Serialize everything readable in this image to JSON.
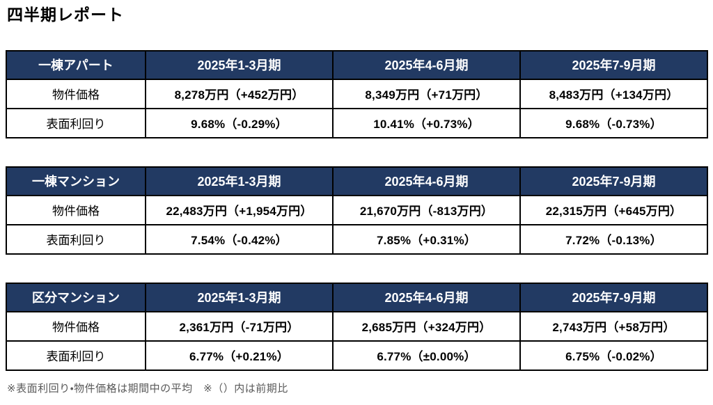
{
  "page_title": "四半期レポート",
  "footnote": "※表面利回り・物件価格は期間中の平均　※（）内は前期比",
  "colors": {
    "header_bg": "#223A63",
    "header_text": "#FFFFFF",
    "table_border": "#000000",
    "footnote_text": "#595959"
  },
  "columns": [
    "2025年1-3月期",
    "2025年4-6月期",
    "2025年7-9月期"
  ],
  "row_labels": {
    "price": "物件価格",
    "yield": "表面利回り"
  },
  "tables": [
    {
      "category": "一棟アパート",
      "price": [
        "8,278万円（+452万円）",
        "8,349万円（+71万円）",
        "8,483万円（+134万円）"
      ],
      "yield": [
        "9.68%（-0.29%）",
        "10.41%（+0.73%）",
        "9.68%（-0.73%）"
      ]
    },
    {
      "category": "一棟マンション",
      "price": [
        "22,483万円（+1,954万円）",
        "21,670万円（-813万円）",
        "22,315万円（+645万円）"
      ],
      "yield": [
        "7.54%（-0.42%）",
        "7.85%（+0.31%）",
        "7.72%（-0.13%）"
      ]
    },
    {
      "category": "区分マンション",
      "price": [
        "2,361万円（-71万円）",
        "2,685万円（+324万円）",
        "2,743万円（+58万円）"
      ],
      "yield": [
        "6.77%（+0.21%）",
        "6.77%（±0.00%）",
        "6.75%（-0.02%）"
      ]
    }
  ]
}
